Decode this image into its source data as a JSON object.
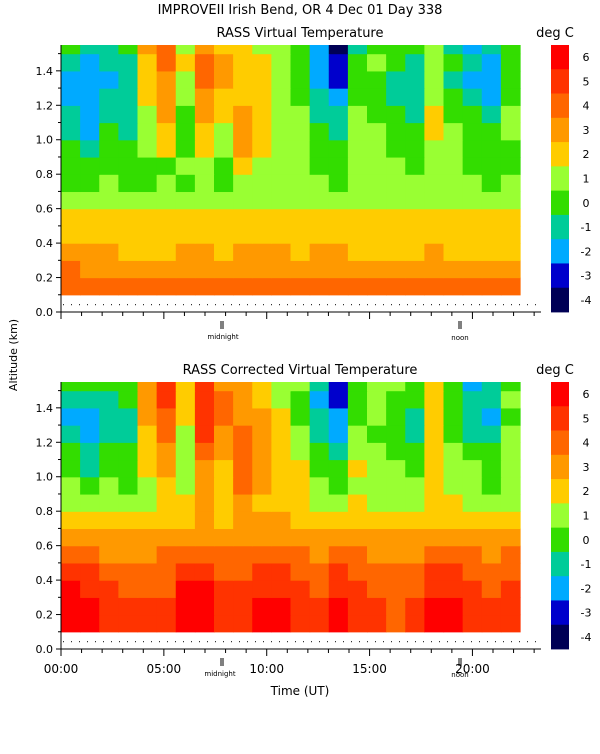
{
  "figure_title": "IMPROVEII  Irish Bend, OR    4 Dec 01 Day 338",
  "shared_ylabel": "Altitude (km)",
  "colorbar": {
    "unit": "deg C",
    "ticks": [
      "6",
      "5",
      "4",
      "3",
      "2",
      "1",
      "0",
      "-1",
      "-2",
      "-3",
      "-4"
    ],
    "colors": [
      "#ff0000",
      "#ff3300",
      "#ff6600",
      "#ff9900",
      "#ffcc00",
      "#99ff33",
      "#33dd00",
      "#00cc99",
      "#00aaff",
      "#0000cc",
      "#000055"
    ]
  },
  "panel_1": {
    "title": "RASS Virtual Temperature",
    "markers": [
      {
        "label": "midnight"
      },
      {
        "label": "noon"
      }
    ]
  },
  "panel_2": {
    "title": "RASS Corrected Virtual Temperature",
    "markers": [
      {
        "label": "midnight"
      },
      {
        "label": "noon"
      }
    ]
  },
  "chart_data": [
    {
      "type": "heatmap",
      "title": "RASS Virtual Temperature",
      "ylabel": "Altitude (km)",
      "xlim": [
        0,
        1400
      ],
      "ylim": [
        0,
        1.55
      ],
      "y_ticks": [
        "0.0",
        "0.2",
        "0.4",
        "0.6",
        "0.8",
        "1.0",
        "1.2",
        "1.4"
      ],
      "colorbar_unit": "deg C",
      "colorbar_range": [
        -4,
        6
      ],
      "data_floor_km": 0.1,
      "levels_km": [
        0.1,
        0.2,
        0.3,
        0.4,
        0.5,
        0.6,
        0.7,
        0.8,
        0.9,
        1.0,
        1.1,
        1.2,
        1.3,
        1.4,
        1.5
      ],
      "time_columns": [
        "00:00",
        "01:00",
        "02:00",
        "03:00",
        "04:00",
        "05:00",
        "06:00",
        "07:00",
        "08:00",
        "09:00",
        "10:00",
        "11:00",
        "12:00",
        "13:00",
        "14:00",
        "15:00",
        "16:00",
        "17:00",
        "18:00",
        "19:00",
        "20:00",
        "21:00",
        "22:00",
        "23:00"
      ],
      "values_degC": [
        [
          4.5,
          4.5,
          4.5,
          4.5,
          4.5,
          4.5,
          4.5,
          4.5,
          4.5,
          4.5,
          4.5,
          4.5,
          4.5,
          4.0,
          4.0,
          4.0,
          4.0,
          4.0,
          4.0,
          4.0,
          4.0,
          4.0,
          4.0,
          4.0
        ],
        [
          4.0,
          3.5,
          3.5,
          3.5,
          3.0,
          3.0,
          3.5,
          3.5,
          3.5,
          3.5,
          3.5,
          3.5,
          3.5,
          3.5,
          3.5,
          3.5,
          3.0,
          3.0,
          3.0,
          3.5,
          3.0,
          3.0,
          3.0,
          3.0
        ],
        [
          3.0,
          3.0,
          3.0,
          2.5,
          2.5,
          2.5,
          3.0,
          3.0,
          2.5,
          3.0,
          3.0,
          3.0,
          2.5,
          3.0,
          3.0,
          2.5,
          2.5,
          2.5,
          2.5,
          3.0,
          2.5,
          2.5,
          2.5,
          2.5
        ],
        [
          2.5,
          2.5,
          2.5,
          2.5,
          2.5,
          2.5,
          2.5,
          2.5,
          2.5,
          2.5,
          2.5,
          2.5,
          2.5,
          2.5,
          2.5,
          2.5,
          2.5,
          2.5,
          2.5,
          2.5,
          2.5,
          2.5,
          2.5,
          2.5
        ],
        [
          2.0,
          2.0,
          2.0,
          2.0,
          2.0,
          2.0,
          2.0,
          2.0,
          2.0,
          2.5,
          2.0,
          2.0,
          2.0,
          2.0,
          2.0,
          2.0,
          2.0,
          2.0,
          2.0,
          2.0,
          2.0,
          2.0,
          2.0,
          2.0
        ],
        [
          1.0,
          1.0,
          1.0,
          1.0,
          1.0,
          1.0,
          1.5,
          1.5,
          1.5,
          1.5,
          1.5,
          1.5,
          1.5,
          1.5,
          1.5,
          1.5,
          1.5,
          1.5,
          1.5,
          1.5,
          1.5,
          1.5,
          1.5,
          1.5
        ],
        [
          0.5,
          0.5,
          1.0,
          0.5,
          0.5,
          1.0,
          0.5,
          1.0,
          0.5,
          1.0,
          1.0,
          1.0,
          1.0,
          1.0,
          0.5,
          1.0,
          1.0,
          1.0,
          1.0,
          1.0,
          1.0,
          1.0,
          0.5,
          1.0
        ],
        [
          0.5,
          0.0,
          0.5,
          0.0,
          0.5,
          0.5,
          1.0,
          1.5,
          0.5,
          2.5,
          1.5,
          1.0,
          1.0,
          0.5,
          0.5,
          1.0,
          1.0,
          1.0,
          0.5,
          1.0,
          1.0,
          0.5,
          0.5,
          0.5
        ],
        [
          0.0,
          -0.5,
          0.5,
          0.0,
          1.0,
          2.0,
          0.5,
          2.0,
          1.0,
          3.0,
          2.0,
          1.5,
          1.5,
          0.5,
          0.0,
          1.0,
          1.0,
          0.5,
          0.5,
          1.5,
          1.0,
          0.5,
          0.0,
          0.5
        ],
        [
          -0.5,
          -1.5,
          0.0,
          -0.5,
          1.5,
          2.5,
          0.0,
          2.5,
          1.5,
          3.0,
          2.0,
          1.5,
          1.5,
          0.0,
          -0.5,
          1.5,
          1.0,
          0.5,
          0.0,
          2.0,
          1.0,
          0.5,
          0.0,
          1.0
        ],
        [
          -0.5,
          -1.5,
          -0.5,
          -0.5,
          1.5,
          3.0,
          0.5,
          3.0,
          2.0,
          3.0,
          2.0,
          1.5,
          1.0,
          -0.5,
          -1.0,
          1.0,
          0.5,
          0.0,
          -0.5,
          2.0,
          0.5,
          0.0,
          -0.5,
          1.0
        ],
        [
          -1.5,
          -2.0,
          -1.0,
          -1.0,
          2.0,
          3.5,
          1.0,
          3.5,
          2.5,
          2.5,
          2.5,
          1.5,
          0.5,
          -1.0,
          -2.0,
          0.5,
          0.0,
          -0.5,
          -1.0,
          1.5,
          0.0,
          -1.0,
          -1.5,
          0.5
        ],
        [
          -2.0,
          -2.0,
          -1.5,
          -1.0,
          2.5,
          3.5,
          1.5,
          4.0,
          3.0,
          2.5,
          2.5,
          1.5,
          0.0,
          -1.5,
          -2.5,
          0.0,
          0.5,
          -0.5,
          -1.0,
          1.5,
          -0.5,
          -1.5,
          -2.0,
          0.0
        ],
        [
          -1.0,
          -1.5,
          -1.0,
          -0.5,
          2.5,
          4.0,
          2.0,
          4.0,
          3.0,
          2.0,
          2.0,
          1.0,
          0.0,
          -2.0,
          -3.0,
          0.0,
          1.0,
          0.0,
          -0.5,
          1.5,
          0.0,
          -1.0,
          -1.5,
          0.5
        ],
        [
          0.0,
          -0.5,
          -0.5,
          0.0,
          3.0,
          4.0,
          1.5,
          3.5,
          2.5,
          2.0,
          1.5,
          1.0,
          0.5,
          -1.5,
          -3.5,
          -0.5,
          0.5,
          0.5,
          0.0,
          1.5,
          -0.5,
          -2.0,
          -1.0,
          0.0
        ]
      ]
    },
    {
      "type": "heatmap",
      "title": "RASS Corrected Virtual Temperature",
      "xlabel": "Time (UT)",
      "ylabel": "Altitude (km)",
      "xlim": [
        0,
        1400
      ],
      "ylim": [
        0,
        1.55
      ],
      "x_ticks": [
        "00:00",
        "05:00",
        "10:00",
        "15:00",
        "20:00"
      ],
      "y_ticks": [
        "0.0",
        "0.2",
        "0.4",
        "0.6",
        "0.8",
        "1.0",
        "1.2",
        "1.4"
      ],
      "colorbar_unit": "deg C",
      "colorbar_range": [
        -4,
        6
      ],
      "data_floor_km": 0.1,
      "levels_km": [
        0.1,
        0.2,
        0.3,
        0.4,
        0.5,
        0.6,
        0.7,
        0.8,
        0.9,
        1.0,
        1.1,
        1.2,
        1.3,
        1.4,
        1.5
      ],
      "time_columns": [
        "00:00",
        "01:00",
        "02:00",
        "03:00",
        "04:00",
        "05:00",
        "06:00",
        "07:00",
        "08:00",
        "09:00",
        "10:00",
        "11:00",
        "12:00",
        "13:00",
        "14:00",
        "15:00",
        "16:00",
        "17:00",
        "18:00",
        "19:00",
        "20:00",
        "21:00",
        "22:00",
        "23:00"
      ],
      "values_degC": [
        [
          6.0,
          6.0,
          5.5,
          5.0,
          5.0,
          5.0,
          6.0,
          6.0,
          5.5,
          5.5,
          6.0,
          6.0,
          5.5,
          5.0,
          6.0,
          5.5,
          5.0,
          4.5,
          5.0,
          6.0,
          6.0,
          5.5,
          5.0,
          5.5
        ],
        [
          6.0,
          6.0,
          5.5,
          5.0,
          5.0,
          5.0,
          6.0,
          6.0,
          5.5,
          5.5,
          6.0,
          6.0,
          5.5,
          5.0,
          6.0,
          5.5,
          5.0,
          4.5,
          5.0,
          6.0,
          6.0,
          5.5,
          5.0,
          5.5
        ],
        [
          6.0,
          5.5,
          5.0,
          4.5,
          4.5,
          4.5,
          6.0,
          6.0,
          5.0,
          5.0,
          5.5,
          5.5,
          5.0,
          4.5,
          5.5,
          5.0,
          4.5,
          4.0,
          4.5,
          5.5,
          5.5,
          5.0,
          4.5,
          5.0
        ],
        [
          5.5,
          5.0,
          4.5,
          4.0,
          4.0,
          4.5,
          5.5,
          5.5,
          4.5,
          4.5,
          5.0,
          5.0,
          4.5,
          4.0,
          5.0,
          4.5,
          4.0,
          4.0,
          4.0,
          5.0,
          5.0,
          4.5,
          4.0,
          4.5
        ],
        [
          4.5,
          4.0,
          3.5,
          3.5,
          3.5,
          4.0,
          4.5,
          4.5,
          4.0,
          4.0,
          4.5,
          4.5,
          4.0,
          3.5,
          4.0,
          4.0,
          3.5,
          3.5,
          3.5,
          4.0,
          4.5,
          4.0,
          3.5,
          4.0
        ],
        [
          3.0,
          3.0,
          3.0,
          3.0,
          3.0,
          3.0,
          3.5,
          3.5,
          3.5,
          3.5,
          3.5,
          3.5,
          3.5,
          3.0,
          3.5,
          3.5,
          3.0,
          3.0,
          3.0,
          3.5,
          3.5,
          3.5,
          3.0,
          3.5
        ],
        [
          2.5,
          2.0,
          2.5,
          2.0,
          2.5,
          2.5,
          2.5,
          3.0,
          2.5,
          3.0,
          3.0,
          3.0,
          2.5,
          2.5,
          2.5,
          2.5,
          2.5,
          2.5,
          2.0,
          2.5,
          2.5,
          2.5,
          2.0,
          2.5
        ],
        [
          1.5,
          1.5,
          1.5,
          1.5,
          1.5,
          2.0,
          2.0,
          3.0,
          2.0,
          3.5,
          2.5,
          2.0,
          2.0,
          1.5,
          1.5,
          2.0,
          1.5,
          1.5,
          1.5,
          2.0,
          2.0,
          1.5,
          1.5,
          1.5
        ],
        [
          1.0,
          0.5,
          1.0,
          0.5,
          1.5,
          2.5,
          1.5,
          3.0,
          2.0,
          4.0,
          3.0,
          2.0,
          2.0,
          1.0,
          0.5,
          1.5,
          1.5,
          1.0,
          1.0,
          2.0,
          1.5,
          1.0,
          0.5,
          1.0
        ],
        [
          0.0,
          -1.0,
          0.5,
          0.0,
          2.0,
          3.0,
          1.0,
          3.5,
          2.5,
          4.5,
          3.0,
          2.5,
          2.0,
          0.5,
          0.0,
          2.0,
          1.5,
          1.0,
          0.5,
          2.5,
          1.5,
          1.0,
          0.5,
          1.5
        ],
        [
          0.0,
          -1.0,
          0.0,
          0.0,
          2.0,
          3.5,
          1.0,
          4.0,
          3.0,
          4.5,
          3.0,
          2.5,
          1.5,
          0.0,
          -0.5,
          1.5,
          1.0,
          0.5,
          0.0,
          2.5,
          1.0,
          0.5,
          0.0,
          1.5
        ],
        [
          -1.0,
          -1.5,
          -0.5,
          -0.5,
          2.5,
          4.0,
          1.5,
          5.0,
          3.5,
          4.0,
          3.0,
          2.0,
          1.0,
          -0.5,
          -1.5,
          1.0,
          0.5,
          0.0,
          -0.5,
          2.0,
          0.5,
          -0.5,
          -1.0,
          1.0
        ],
        [
          -1.5,
          -1.5,
          -1.0,
          -0.5,
          3.0,
          4.5,
          2.0,
          5.5,
          4.0,
          3.5,
          3.0,
          2.0,
          0.5,
          -1.0,
          -2.0,
          0.5,
          1.0,
          0.0,
          -0.5,
          2.0,
          0.0,
          -1.0,
          -1.5,
          0.5
        ],
        [
          -0.5,
          -1.0,
          -0.5,
          0.0,
          3.0,
          5.0,
          2.5,
          5.5,
          4.0,
          3.0,
          2.5,
          1.5,
          0.5,
          -1.5,
          -2.5,
          0.5,
          1.5,
          0.5,
          0.0,
          2.0,
          0.5,
          -0.5,
          -1.0,
          1.0
        ],
        [
          0.5,
          0.0,
          0.0,
          0.5,
          3.5,
          5.0,
          2.0,
          5.0,
          3.5,
          3.0,
          2.0,
          1.5,
          1.0,
          -1.0,
          -3.0,
          0.0,
          1.0,
          1.0,
          0.5,
          2.0,
          0.0,
          -1.5,
          -0.5,
          0.5
        ]
      ]
    }
  ]
}
